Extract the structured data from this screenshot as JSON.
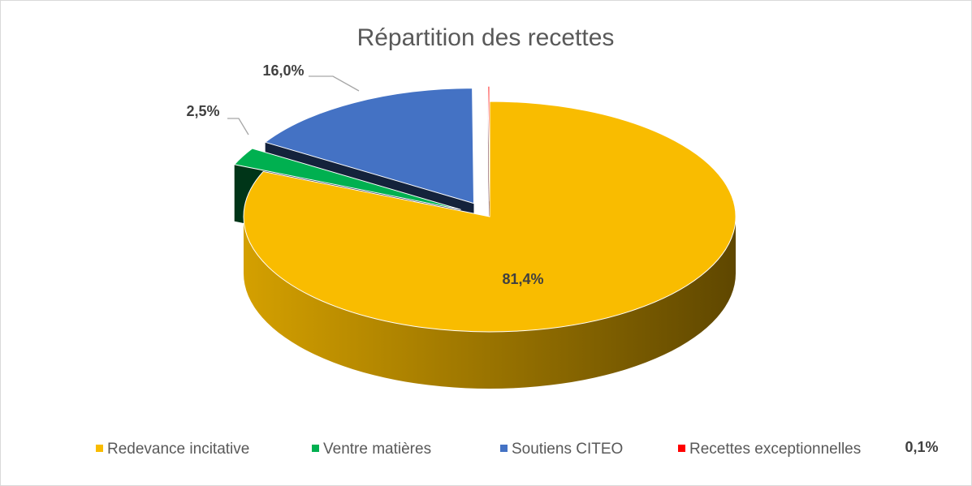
{
  "chart_data": {
    "type": "pie",
    "title": "Répartition des recettes",
    "categories": [
      "Redevance incitative",
      "Ventre matières",
      "Soutiens CITEO",
      "Recettes exceptionnelles"
    ],
    "values": [
      81.4,
      2.5,
      16.0,
      0.1
    ],
    "value_labels": [
      "81,4%",
      "2,5%",
      "16,0%",
      "0,1%"
    ],
    "colors": [
      "#f9bc00",
      "#00b050",
      "#4472c4",
      "#ff0000"
    ],
    "legend": "bottom"
  }
}
